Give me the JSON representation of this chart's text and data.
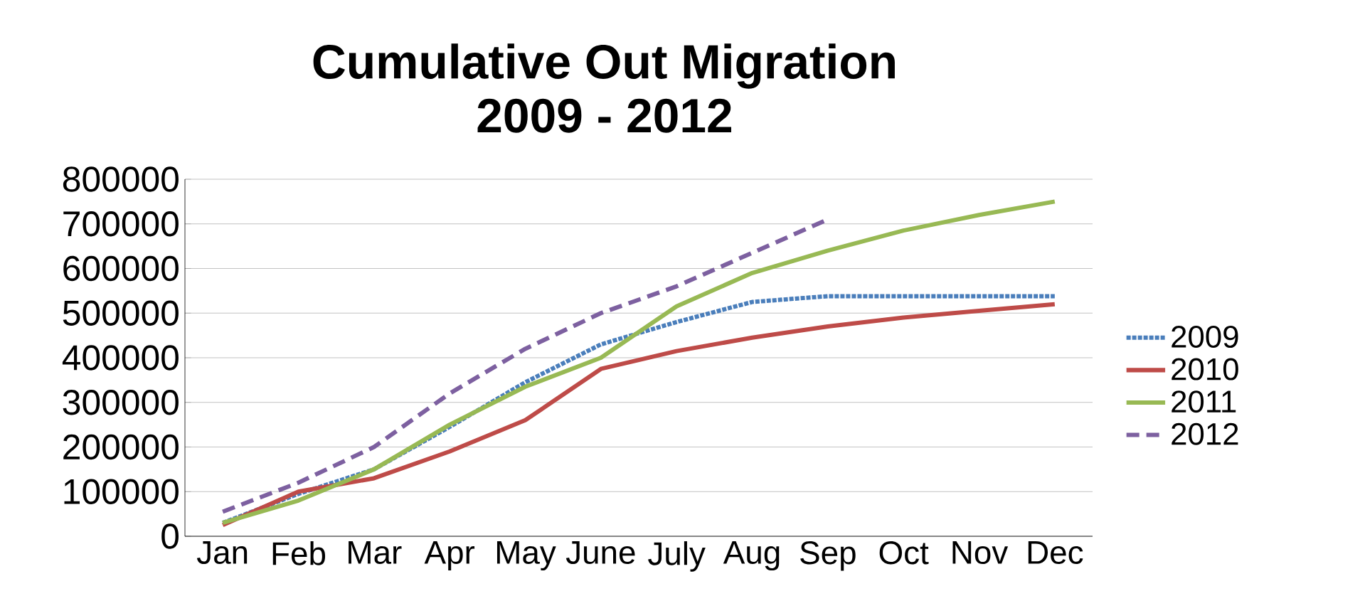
{
  "chart_data": {
    "type": "line",
    "title": "Cumulative Out Migration\n2009 - 2012",
    "categories": [
      "Jan",
      "Feb",
      "Mar",
      "Apr",
      "May",
      "June",
      "July",
      "Aug",
      "Sep",
      "Oct",
      "Nov",
      "Dec"
    ],
    "ylim": [
      0,
      800000
    ],
    "yticks": [
      0,
      100000,
      200000,
      300000,
      400000,
      500000,
      600000,
      700000,
      800000
    ],
    "grid": "y",
    "legend": "right",
    "series": [
      {
        "name": "2009",
        "color": "#4a7ebb",
        "line_style": "dotted",
        "values": [
          30000,
          95000,
          150000,
          245000,
          345000,
          430000,
          480000,
          525000,
          538000,
          538000,
          538000,
          538000
        ]
      },
      {
        "name": "2010",
        "color": "#be4b48",
        "line_style": "solid",
        "values": [
          25000,
          100000,
          130000,
          190000,
          260000,
          375000,
          415000,
          445000,
          470000,
          490000,
          505000,
          520000
        ]
      },
      {
        "name": "2011",
        "color": "#98b954",
        "line_style": "solid",
        "values": [
          30000,
          80000,
          150000,
          250000,
          335000,
          400000,
          515000,
          590000,
          640000,
          685000,
          720000,
          750000
        ]
      },
      {
        "name": "2012",
        "color": "#7d60a0",
        "line_style": "dashed",
        "values": [
          55000,
          120000,
          200000,
          320000,
          420000,
          500000,
          560000,
          635000,
          710000,
          null,
          null,
          null
        ]
      }
    ]
  }
}
